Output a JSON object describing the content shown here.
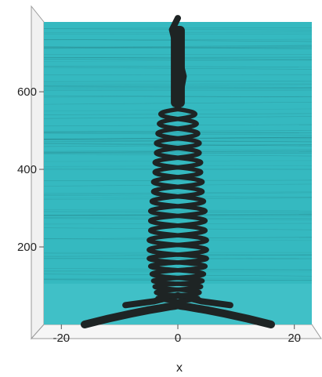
{
  "chart_data": {
    "type": "line",
    "title": "",
    "xlabel": "x",
    "ylabel": "",
    "xlim": [
      -23,
      23
    ],
    "ylim": [
      0,
      780
    ],
    "x_ticks": [
      -20,
      0,
      20
    ],
    "y_ticks": [
      200,
      400,
      600
    ],
    "x_tick_labels": [
      "-20",
      "0",
      "20"
    ],
    "y_tick_labels": [
      "200",
      "400",
      "600"
    ],
    "grid": false,
    "legend": "none",
    "background_color": "#35b9c0",
    "line_color": "#1e2424",
    "series": [
      {
        "x": [
          -16,
          -12,
          -8,
          -5,
          -3,
          -1.5,
          -0.5,
          0
        ],
        "y": [
          0,
          15,
          28,
          37,
          42,
          46,
          48,
          50
        ]
      },
      {
        "x": [
          16,
          12,
          8,
          5,
          3,
          1.5,
          0.5,
          0
        ],
        "y": [
          0,
          15,
          28,
          37,
          42,
          46,
          48,
          50
        ]
      },
      {
        "x": [
          -9,
          -4,
          0
        ],
        "y": [
          50,
          60,
          75
        ]
      },
      {
        "x": [
          9,
          4,
          0
        ],
        "y": [
          50,
          60,
          75
        ]
      },
      {
        "x": [
          0,
          1,
          0,
          -1,
          0
        ],
        "y": [
          560,
          640,
          700,
          760,
          790
        ]
      }
    ],
    "oscillation_envelope": {
      "y": [
        60,
        75,
        90,
        105,
        120,
        140,
        160,
        180,
        205,
        230,
        255,
        280,
        305,
        330,
        355,
        380,
        405,
        430,
        455,
        480,
        505,
        530,
        555
      ],
      "half_width": [
        7,
        7.5,
        8,
        8.5,
        9,
        9.5,
        10,
        10,
        10,
        9.5,
        9.5,
        9.5,
        9,
        8.5,
        8.5,
        8,
        8,
        7.5,
        7.5,
        7,
        6.5,
        6,
        4
      ]
    }
  }
}
